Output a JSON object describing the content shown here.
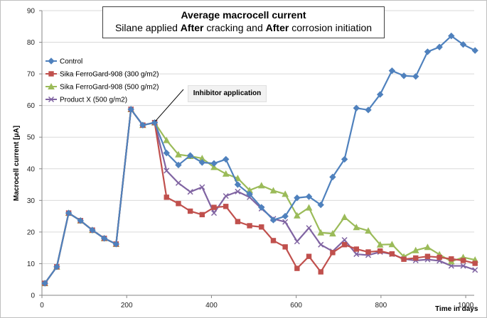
{
  "title": {
    "line1": "Average macrocell current",
    "line2_parts": [
      "Silane applied ",
      "After",
      " cracking and ",
      "After",
      " corrosion initiation"
    ]
  },
  "annotation": "Inhibitor application",
  "chart_data": {
    "type": "line",
    "xlabel": "Time in days",
    "ylabel": "Macrocell current [μA]",
    "xlim": [
      0,
      1020
    ],
    "ylim": [
      0,
      90
    ],
    "xticks": [
      0,
      200,
      400,
      600,
      800,
      1000
    ],
    "yticks": [
      0,
      10,
      20,
      30,
      40,
      50,
      60,
      70,
      80,
      90
    ],
    "grid": "horizontal",
    "legend_position": "top-left",
    "series": [
      {
        "name": "Control",
        "color": "#4f81bd",
        "marker": "diamond",
        "x": [
          7,
          35,
          63,
          91,
          119,
          147,
          175,
          210,
          238,
          266,
          294,
          322,
          350,
          378,
          406,
          434,
          462,
          490,
          518,
          546,
          574,
          602,
          630,
          658,
          686,
          714,
          742,
          770,
          798,
          826,
          854,
          882,
          910,
          938,
          966,
          994,
          1022
        ],
        "y": [
          3.8,
          9.0,
          26.0,
          23.6,
          20.6,
          18.0,
          16.2,
          58.8,
          53.8,
          54.6,
          45.0,
          41.2,
          44.2,
          42.0,
          41.7,
          43.0,
          35.0,
          32.0,
          27.8,
          23.8,
          25.0,
          30.8,
          31.2,
          28.6,
          37.4,
          43.0,
          59.2,
          58.6,
          63.5,
          71.0,
          69.4,
          69.2,
          77.0,
          78.5,
          82.0,
          79.3,
          77.4
        ]
      },
      {
        "name": "Sika FerroGard-908 (300 g/m2)",
        "color": "#c0504d",
        "marker": "square",
        "x": [
          7,
          35,
          63,
          91,
          119,
          147,
          175,
          210,
          238,
          266,
          294,
          322,
          350,
          378,
          406,
          434,
          462,
          490,
          518,
          546,
          574,
          602,
          630,
          658,
          686,
          714,
          742,
          770,
          798,
          826,
          854,
          882,
          910,
          938,
          966,
          994,
          1022
        ],
        "y": [
          3.8,
          9.0,
          26.0,
          23.6,
          20.6,
          18.0,
          16.2,
          58.8,
          53.8,
          54.6,
          31.0,
          29.0,
          26.6,
          25.5,
          27.8,
          28.1,
          23.3,
          22.0,
          21.6,
          17.3,
          15.3,
          8.5,
          12.3,
          7.4,
          13.5,
          16.0,
          14.6,
          13.7,
          14.0,
          13.1,
          11.4,
          11.8,
          12.3,
          12.0,
          11.5,
          11.0,
          10.1
        ]
      },
      {
        "name": "Sika FerroGard-908 (500 g/m2)",
        "color": "#9bbb59",
        "marker": "triangle",
        "x": [
          7,
          35,
          63,
          91,
          119,
          147,
          175,
          210,
          238,
          266,
          294,
          322,
          350,
          378,
          406,
          434,
          462,
          490,
          518,
          546,
          574,
          602,
          630,
          658,
          686,
          714,
          742,
          770,
          798,
          826,
          854,
          882,
          910,
          938,
          966,
          994,
          1022
        ],
        "y": [
          3.8,
          9.0,
          26.0,
          23.6,
          20.6,
          18.0,
          16.2,
          58.8,
          53.8,
          54.6,
          49.0,
          44.5,
          44.0,
          43.3,
          40.5,
          38.4,
          37.0,
          33.2,
          34.7,
          33.1,
          32.0,
          25.2,
          27.7,
          19.8,
          19.5,
          24.7,
          21.5,
          20.4,
          16.0,
          16.1,
          12.2,
          14.2,
          15.2,
          12.9,
          10.7,
          12.0,
          11.2
        ]
      },
      {
        "name": "Product X (500 g/m2)",
        "color": "#8064a2",
        "marker": "x",
        "x": [
          7,
          35,
          63,
          91,
          119,
          147,
          175,
          210,
          238,
          266,
          294,
          322,
          350,
          378,
          406,
          434,
          462,
          490,
          518,
          546,
          574,
          602,
          630,
          658,
          686,
          714,
          742,
          770,
          798,
          826,
          854,
          882,
          910,
          938,
          966,
          994,
          1022
        ],
        "y": [
          3.8,
          9.0,
          26.0,
          23.6,
          20.6,
          18.0,
          16.2,
          58.8,
          53.8,
          54.6,
          39.4,
          35.5,
          32.7,
          34.2,
          26.0,
          31.4,
          32.8,
          31.0,
          27.4,
          24.2,
          23.2,
          17.0,
          21.3,
          16.0,
          13.9,
          17.5,
          13.0,
          12.7,
          13.7,
          13.0,
          11.5,
          11.0,
          11.3,
          10.9,
          9.3,
          9.3,
          8.0
        ]
      }
    ]
  }
}
